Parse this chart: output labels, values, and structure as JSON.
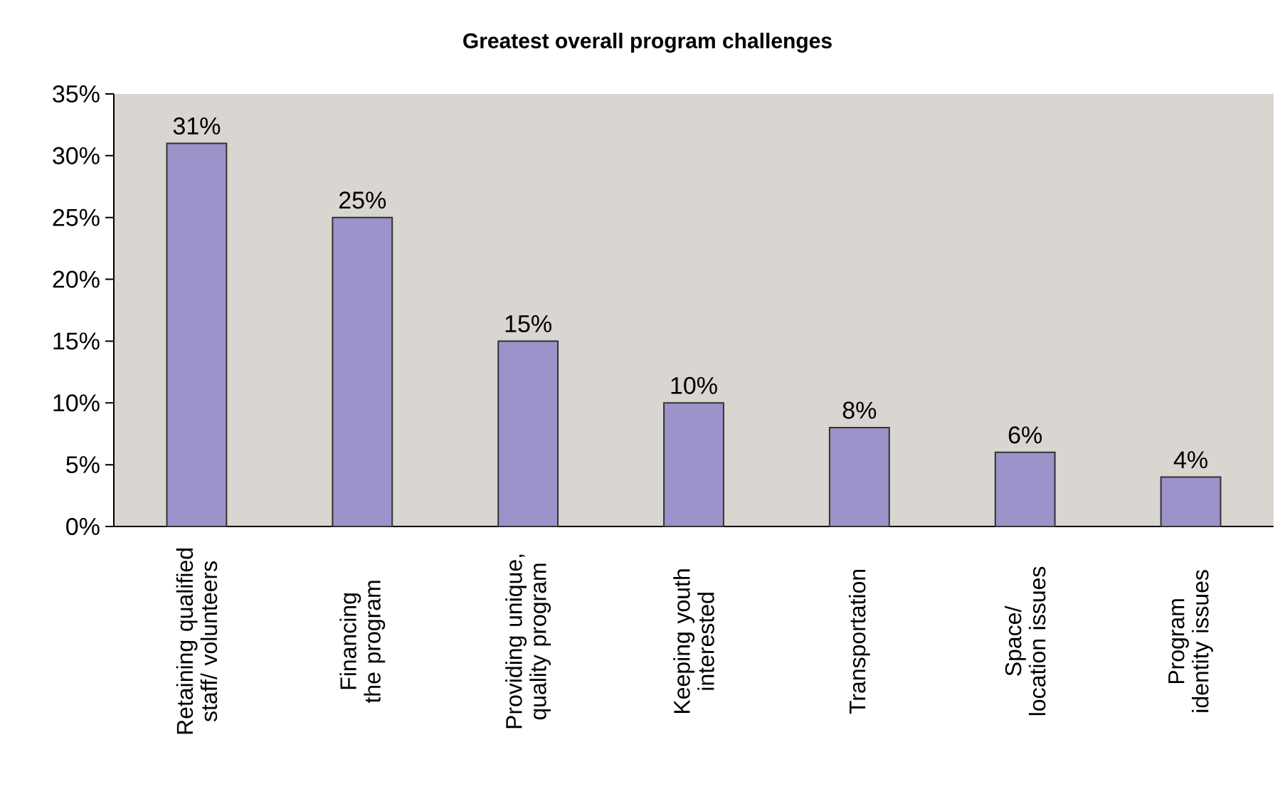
{
  "chart_data": {
    "type": "bar",
    "title": "Greatest overall program challenges",
    "categories": [
      "Retaining qualified staff/ volunteers",
      "Financing the program",
      "Providing unique, quality program",
      "Keeping youth interested",
      "Transportation",
      "Space/ location issues",
      "Program identity issues"
    ],
    "values": [
      31,
      25,
      15,
      10,
      8,
      6,
      4
    ],
    "value_labels": [
      "31%",
      "25%",
      "15%",
      "10%",
      "8%",
      "6%",
      "4%"
    ],
    "color": "#9b93c9",
    "ylim": [
      0,
      35
    ],
    "yticks": [
      {
        "value": 0,
        "label": "0%"
      },
      {
        "value": 5,
        "label": "5%"
      },
      {
        "value": 10,
        "label": "10%"
      },
      {
        "value": 15,
        "label": "15%"
      },
      {
        "value": 20,
        "label": "20%"
      },
      {
        "value": 25,
        "label": "25%"
      },
      {
        "value": 30,
        "label": "30%"
      },
      {
        "value": 35,
        "label": "35%"
      }
    ],
    "grid": false
  }
}
